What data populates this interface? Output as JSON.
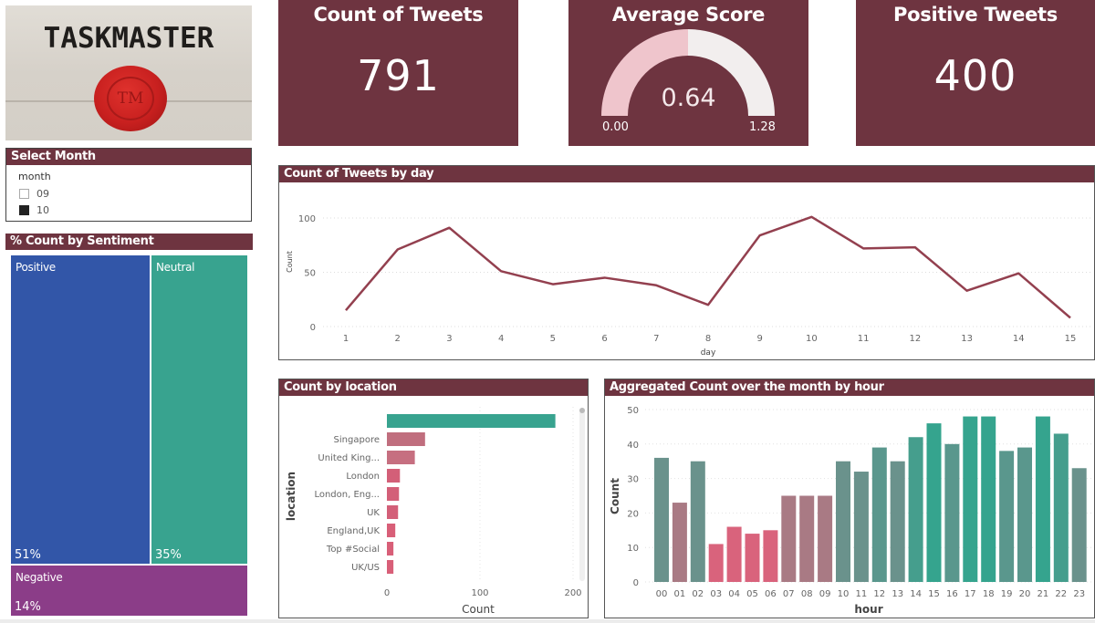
{
  "logo": {
    "text": "TASKMASTER",
    "seal_text": "TM"
  },
  "slicer": {
    "title": "Select Month",
    "field": "month",
    "options": [
      {
        "label": "09",
        "checked": false
      },
      {
        "label": "10",
        "checked": true
      }
    ]
  },
  "kpis": {
    "count_tweets": {
      "title": "Count of Tweets",
      "value": "791"
    },
    "average_score": {
      "title": "Average Score",
      "value": "0.64",
      "min": "0.00",
      "max": "1.28"
    },
    "positive_tweets": {
      "title": "Positive Tweets",
      "value": "400"
    }
  },
  "treemap": {
    "title": "% Count by Sentiment",
    "tiles": [
      {
        "label": "Positive",
        "pct": "51%",
        "color": "#3256a8"
      },
      {
        "label": "Neutral",
        "pct": "35%",
        "color": "#38a38f"
      },
      {
        "label": "Negative",
        "pct": "14%",
        "color": "#8b3d88"
      }
    ]
  },
  "line_panel": {
    "title": "Count of Tweets by day",
    "xlabel": "day",
    "ylabel": "Count"
  },
  "location_panel": {
    "title": "Count by location",
    "xlabel": "Count",
    "ylabel": "location"
  },
  "hour_panel": {
    "title": "Aggregated Count over the month by hour",
    "xlabel": "hour",
    "ylabel": "Count"
  },
  "colors": {
    "brand": "#6e3440",
    "line": "#93404f",
    "teal": "#38a38f",
    "pink": "#d4607a",
    "mauve": "#a57882",
    "grey_teal": "#6e9690"
  },
  "chart_data": [
    {
      "type": "line",
      "title": "Count of Tweets by day",
      "xlabel": "day",
      "ylabel": "Count",
      "x": [
        1,
        2,
        3,
        4,
        5,
        6,
        7,
        8,
        9,
        10,
        11,
        12,
        13,
        14,
        15
      ],
      "values": [
        15,
        71,
        91,
        51,
        39,
        45,
        38,
        20,
        84,
        101,
        72,
        73,
        33,
        49,
        8
      ],
      "yticks": [
        0,
        50,
        100
      ],
      "ylim": [
        0,
        110
      ],
      "grid": true
    },
    {
      "type": "bar",
      "orientation": "horizontal",
      "title": "Count by location",
      "xlabel": "Count",
      "ylabel": "location",
      "categories": [
        "",
        "Singapore",
        "United King...",
        "London",
        "London, Eng...",
        "UK",
        "England,UK",
        "Top #Social",
        "UK/US"
      ],
      "values": [
        181,
        41,
        30,
        14,
        13,
        12,
        9,
        7,
        7
      ],
      "xticks": [
        0,
        100,
        200
      ],
      "xlim": [
        0,
        200
      ],
      "grid": true
    },
    {
      "type": "bar",
      "title": "Aggregated Count over the month by hour",
      "xlabel": "hour",
      "ylabel": "Count",
      "categories": [
        "00",
        "01",
        "02",
        "03",
        "04",
        "05",
        "06",
        "07",
        "08",
        "09",
        "10",
        "11",
        "12",
        "13",
        "14",
        "15",
        "16",
        "17",
        "18",
        "19",
        "20",
        "21",
        "22",
        "23"
      ],
      "values": [
        36,
        23,
        35,
        11,
        16,
        14,
        15,
        25,
        25,
        25,
        35,
        32,
        39,
        35,
        42,
        46,
        40,
        48,
        48,
        38,
        39,
        48,
        43,
        33
      ],
      "yticks": [
        0,
        10,
        20,
        30,
        40,
        50
      ],
      "ylim": [
        0,
        50
      ],
      "grid": true
    },
    {
      "type": "pie",
      "subtype": "treemap",
      "title": "% Count by Sentiment",
      "categories": [
        "Positive",
        "Neutral",
        "Negative"
      ],
      "values": [
        51,
        35,
        14
      ]
    },
    {
      "type": "gauge",
      "title": "Average Score",
      "value": 0.64,
      "min": 0.0,
      "max": 1.28
    }
  ]
}
